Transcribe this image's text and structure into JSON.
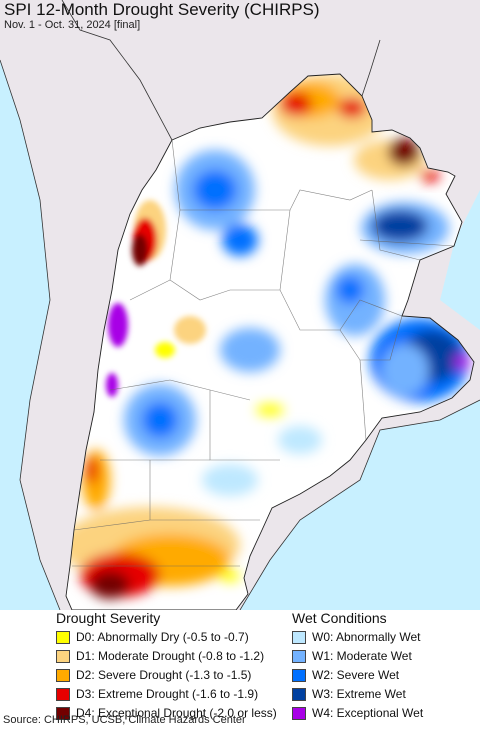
{
  "title": "SPI 12-Month Drought Severity (CHIRPS)",
  "subtitle": "Nov. 1 - Oct. 31, 2024 [final]",
  "legend": {
    "drought_header": "Drought Severity",
    "wet_header": "Wet Conditions",
    "drought_items": [
      {
        "label": "D0: Abnormally Dry (-0.5 to -0.7)",
        "color": "#ffff00"
      },
      {
        "label": "D1: Moderate Drought (-0.8 to -1.2)",
        "color": "#fcd37f"
      },
      {
        "label": "D2: Severe Drought (-1.3 to -1.5)",
        "color": "#ffaa00"
      },
      {
        "label": "D3: Extreme Drought (-1.6 to -1.9)",
        "color": "#e60000"
      },
      {
        "label": "D4: Exceptional Drought (-2.0 or less)",
        "color": "#730000"
      }
    ],
    "wet_items": [
      {
        "label": "W0: Abnormally Wet",
        "color": "#bee8ff"
      },
      {
        "label": "W1: Moderate Wet",
        "color": "#73b2ff"
      },
      {
        "label": "W2: Severe Wet",
        "color": "#0070ff"
      },
      {
        "label": "W3: Extreme Wet",
        "color": "#0040a0"
      },
      {
        "label": "W4: Exceptional Wet",
        "color": "#a800e6"
      }
    ]
  },
  "source": "Source: CHIRPS, UCSB, Climate Hazards Center",
  "colors": {
    "ocean": "#c8f0ff",
    "outside_land": "#ebe6eb",
    "land": "#ffffff"
  }
}
